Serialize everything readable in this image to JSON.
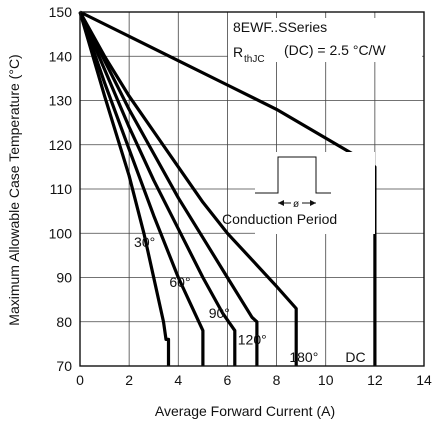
{
  "chart_data": {
    "type": "line",
    "xlabel": "Average Forward Current (A)",
    "ylabel": "Maximum Allowable Case Temperature (°C)",
    "xlim": [
      0,
      14
    ],
    "ylim": [
      70,
      150
    ],
    "x_ticks": [
      "0",
      "2",
      "4",
      "6",
      "8",
      "10",
      "12",
      "14"
    ],
    "y_ticks": [
      "70",
      "80",
      "90",
      "100",
      "110",
      "120",
      "130",
      "140",
      "150"
    ],
    "grid": true,
    "annotations": {
      "series_title": "8EWF..SSeries",
      "rth_prefix": "R",
      "rth_sub": "thJC",
      "rth_value": "(DC) = 2.5 °C/W",
      "conduction": "Conduction Period",
      "phi": "ø"
    },
    "series": [
      {
        "name": "30°",
        "points": [
          [
            0,
            150
          ],
          [
            1,
            131
          ],
          [
            2,
            113
          ],
          [
            2.6,
            100
          ],
          [
            3,
            90
          ],
          [
            3.4,
            80
          ],
          [
            3.5,
            76
          ],
          [
            3.6,
            76
          ],
          [
            3.6,
            70
          ]
        ]
      },
      {
        "name": "60°",
        "points": [
          [
            0,
            150
          ],
          [
            1,
            134
          ],
          [
            2,
            119
          ],
          [
            3,
            104
          ],
          [
            4,
            90
          ],
          [
            4.5,
            84
          ],
          [
            5,
            78
          ],
          [
            5,
            70
          ]
        ]
      },
      {
        "name": "90°",
        "points": [
          [
            0,
            150
          ],
          [
            1,
            137
          ],
          [
            2,
            124
          ],
          [
            3,
            112
          ],
          [
            4,
            101
          ],
          [
            5,
            90
          ],
          [
            5.8,
            82
          ],
          [
            6.3,
            78
          ],
          [
            6.3,
            70
          ]
        ]
      },
      {
        "name": "120°",
        "points": [
          [
            0,
            150
          ],
          [
            1,
            139
          ],
          [
            2,
            128
          ],
          [
            3,
            118
          ],
          [
            4,
            108
          ],
          [
            5,
            99
          ],
          [
            6,
            90
          ],
          [
            7,
            81
          ],
          [
            7.2,
            80
          ],
          [
            7.2,
            70
          ]
        ]
      },
      {
        "name": "180°",
        "points": [
          [
            0,
            150
          ],
          [
            1,
            140
          ],
          [
            2,
            131
          ],
          [
            3,
            123
          ],
          [
            4,
            115
          ],
          [
            5,
            107
          ],
          [
            6,
            100
          ],
          [
            7,
            94
          ],
          [
            8,
            88
          ],
          [
            8.8,
            83
          ],
          [
            8.8,
            70
          ]
        ]
      },
      {
        "name": "DC",
        "points": [
          [
            0,
            150
          ],
          [
            2,
            144.5
          ],
          [
            4,
            139
          ],
          [
            6,
            133.5
          ],
          [
            8,
            128
          ],
          [
            10,
            121.5
          ],
          [
            12,
            115
          ],
          [
            12,
            70
          ]
        ]
      }
    ]
  }
}
